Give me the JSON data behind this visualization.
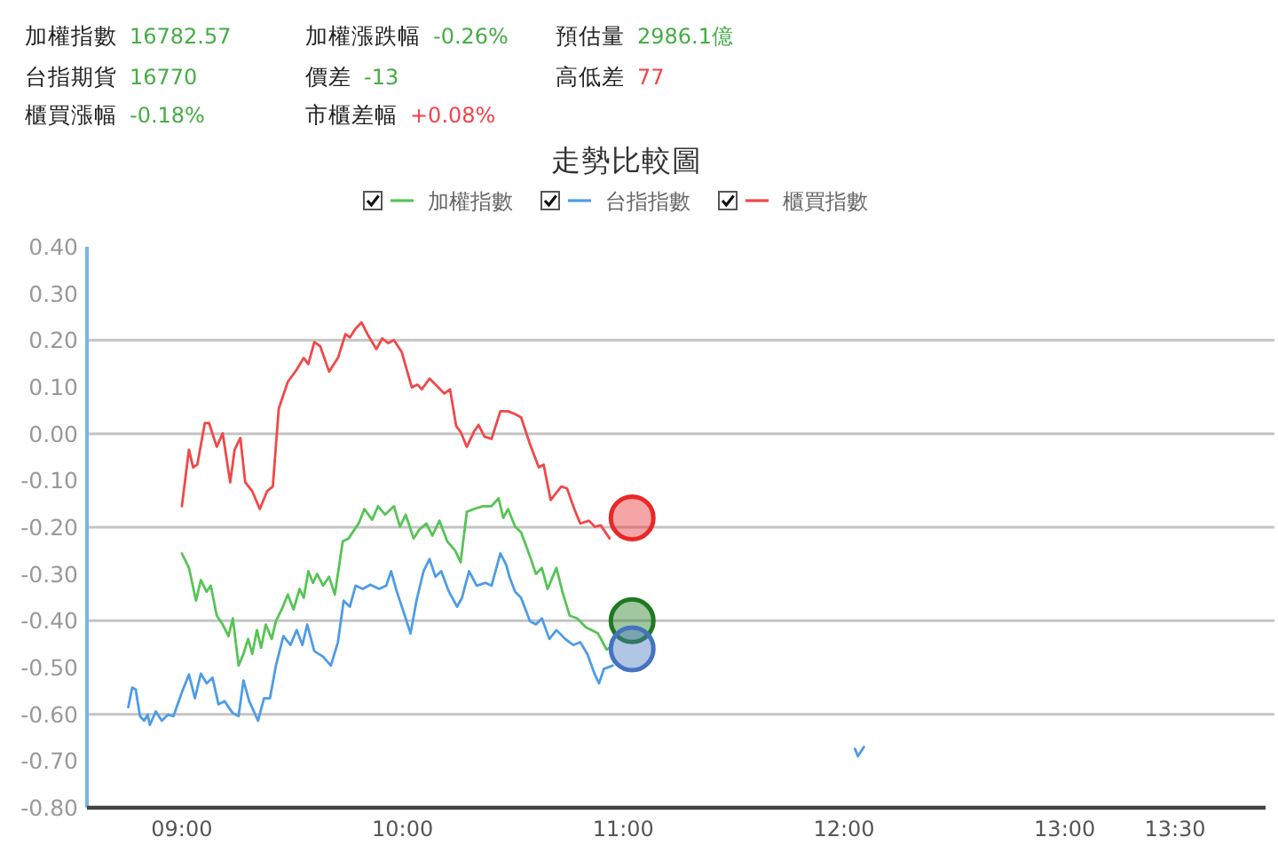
{
  "chart_data": {
    "type": "line",
    "title": "走勢比較圖",
    "annotations": [
      "加權指數 16782.57",
      "加權漲跌幅 -0.26%",
      "預估量 2986.1億",
      "台指期貨 16770",
      "價差 -13",
      "高低差 77",
      "櫃買漲幅 -0.18%",
      "市櫃差幅 +0.08%"
    ],
    "xlim": [
      8.57,
      13.91
    ],
    "xticks": [
      {
        "value": 9,
        "label": "09:00"
      },
      {
        "value": 10,
        "label": "10:00"
      },
      {
        "value": 11,
        "label": "11:00"
      },
      {
        "value": 12,
        "label": "12:00"
      },
      {
        "value": 13,
        "label": "13:00"
      },
      {
        "value": 13.5,
        "label": "13:30"
      }
    ],
    "ylim": [
      -0.8,
      0.4
    ],
    "yticks": [
      {
        "value": 0.4,
        "label": "0.40"
      },
      {
        "value": 0.3,
        "label": "0.30"
      },
      {
        "value": 0.2,
        "label": "0.20"
      },
      {
        "value": 0.1,
        "label": "0.10"
      },
      {
        "value": 0,
        "label": "0.00"
      },
      {
        "value": -0.1,
        "label": "-0.10"
      },
      {
        "value": -0.2,
        "label": "-0.20"
      },
      {
        "value": -0.3,
        "label": "-0.30"
      },
      {
        "value": -0.4,
        "label": "-0.40"
      },
      {
        "value": -0.5,
        "label": "-0.50"
      },
      {
        "value": -0.6,
        "label": "-0.60"
      },
      {
        "value": -0.7,
        "label": "-0.70"
      },
      {
        "value": -0.8,
        "label": "-0.80"
      }
    ],
    "grid": "y",
    "legend": "top",
    "series": [
      {
        "name": "加權指數",
        "color": "#56c456",
        "x": [
          9.0,
          9.032,
          9.064,
          9.086,
          9.112,
          9.131,
          9.158,
          9.185,
          9.211,
          9.231,
          9.257,
          9.279,
          9.3,
          9.319,
          9.34,
          9.359,
          9.38,
          9.407,
          9.426,
          9.452,
          9.48,
          9.506,
          9.533,
          9.552,
          9.573,
          9.594,
          9.613,
          9.64,
          9.667,
          9.693,
          9.729,
          9.755,
          9.782,
          9.801,
          9.827,
          9.862,
          9.889,
          9.921,
          9.961,
          9.988,
          10.014,
          10.05,
          10.076,
          10.108,
          10.135,
          10.167,
          10.202,
          10.237,
          10.263,
          10.291,
          10.323,
          10.363,
          10.403,
          10.435,
          10.456,
          10.478,
          10.51,
          10.537,
          10.577,
          10.604,
          10.631,
          10.657,
          10.697,
          10.724,
          10.757,
          10.791,
          10.831,
          10.885,
          10.925,
          10.952
        ],
        "values": [
          -0.256,
          -0.287,
          -0.357,
          -0.313,
          -0.338,
          -0.325,
          -0.389,
          -0.408,
          -0.433,
          -0.395,
          -0.496,
          -0.471,
          -0.439,
          -0.471,
          -0.42,
          -0.458,
          -0.408,
          -0.439,
          -0.401,
          -0.376,
          -0.344,
          -0.376,
          -0.332,
          -0.351,
          -0.294,
          -0.319,
          -0.3,
          -0.325,
          -0.306,
          -0.344,
          -0.23,
          -0.224,
          -0.205,
          -0.192,
          -0.161,
          -0.184,
          -0.155,
          -0.173,
          -0.155,
          -0.199,
          -0.173,
          -0.224,
          -0.205,
          -0.192,
          -0.218,
          -0.186,
          -0.23,
          -0.249,
          -0.275,
          -0.167,
          -0.161,
          -0.155,
          -0.155,
          -0.138,
          -0.18,
          -0.161,
          -0.199,
          -0.211,
          -0.262,
          -0.3,
          -0.287,
          -0.332,
          -0.287,
          -0.338,
          -0.389,
          -0.395,
          -0.414,
          -0.427,
          -0.462,
          -0.452
        ]
      },
      {
        "name": "台指指數",
        "color": "#4e9ce6",
        "x": [
          8.757,
          8.775,
          8.791,
          8.81,
          8.829,
          8.845,
          8.855,
          8.882,
          8.909,
          8.936,
          8.962,
          9.0,
          9.032,
          9.059,
          9.086,
          9.112,
          9.139,
          9.166,
          9.193,
          9.231,
          9.257,
          9.279,
          9.305,
          9.345,
          9.372,
          9.399,
          9.426,
          9.46,
          9.492,
          9.52,
          9.546,
          9.568,
          9.6,
          9.64,
          9.675,
          9.707,
          9.733,
          9.761,
          9.787,
          9.819,
          9.854,
          9.894,
          9.926,
          9.948,
          9.974,
          10.01,
          10.036,
          10.063,
          10.095,
          10.122,
          10.149,
          10.175,
          10.21,
          10.247,
          10.269,
          10.301,
          10.336,
          10.376,
          10.403,
          10.443,
          10.47,
          10.484,
          10.51,
          10.537,
          10.577,
          10.604,
          10.631,
          10.665,
          10.697,
          10.737,
          10.773,
          10.805,
          10.837,
          10.871,
          10.89,
          10.912,
          10.952,
          11.5,
          12.05,
          12.063,
          12.09
        ],
        "values": [
          -0.585,
          -0.543,
          -0.547,
          -0.604,
          -0.614,
          -0.601,
          -0.623,
          -0.594,
          -0.614,
          -0.601,
          -0.604,
          -0.553,
          -0.515,
          -0.566,
          -0.513,
          -0.534,
          -0.522,
          -0.579,
          -0.572,
          -0.598,
          -0.604,
          -0.528,
          -0.572,
          -0.614,
          -0.566,
          -0.566,
          -0.496,
          -0.433,
          -0.452,
          -0.42,
          -0.452,
          -0.408,
          -0.465,
          -0.477,
          -0.496,
          -0.446,
          -0.357,
          -0.37,
          -0.325,
          -0.332,
          -0.323,
          -0.332,
          -0.325,
          -0.294,
          -0.338,
          -0.389,
          -0.427,
          -0.357,
          -0.294,
          -0.268,
          -0.306,
          -0.294,
          -0.338,
          -0.37,
          -0.351,
          -0.294,
          -0.325,
          -0.319,
          -0.325,
          -0.256,
          -0.281,
          -0.306,
          -0.338,
          -0.351,
          -0.401,
          -0.408,
          -0.395,
          -0.439,
          -0.42,
          -0.439,
          -0.452,
          -0.446,
          -0.471,
          -0.515,
          -0.534,
          -0.503,
          -0.496,
          null,
          -0.674,
          -0.69,
          -0.67
        ]
      },
      {
        "name": "櫃買指數",
        "color": "#f04848",
        "x": [
          9.0,
          9.032,
          9.051,
          9.07,
          9.104,
          9.123,
          9.158,
          9.185,
          9.219,
          9.239,
          9.265,
          9.287,
          9.319,
          9.353,
          9.386,
          9.412,
          9.439,
          9.48,
          9.52,
          9.552,
          9.573,
          9.6,
          9.627,
          9.667,
          9.707,
          9.741,
          9.761,
          9.787,
          9.814,
          9.841,
          9.881,
          9.908,
          9.934,
          9.961,
          9.996,
          10.042,
          10.068,
          10.087,
          10.122,
          10.162,
          10.189,
          10.215,
          10.243,
          10.263,
          10.291,
          10.323,
          10.344,
          10.371,
          10.403,
          10.443,
          10.478,
          10.51,
          10.537,
          10.577,
          10.617,
          10.639,
          10.671,
          10.719,
          10.745,
          10.778,
          10.805,
          10.845,
          10.871,
          10.898,
          10.938
        ],
        "values": [
          -0.155,
          -0.034,
          -0.072,
          -0.066,
          0.023,
          0.023,
          -0.028,
          0.001,
          -0.104,
          -0.034,
          -0.009,
          -0.104,
          -0.123,
          -0.161,
          -0.123,
          -0.113,
          0.054,
          0.111,
          0.137,
          0.162,
          0.149,
          0.196,
          0.187,
          0.133,
          0.162,
          0.213,
          0.206,
          0.225,
          0.238,
          0.213,
          0.181,
          0.204,
          0.194,
          0.2,
          0.175,
          0.099,
          0.105,
          0.095,
          0.118,
          0.099,
          0.086,
          0.095,
          0.016,
          0.004,
          -0.028,
          0.004,
          0.019,
          -0.006,
          -0.011,
          0.048,
          0.048,
          0.042,
          0.035,
          -0.022,
          -0.072,
          -0.066,
          -0.142,
          -0.113,
          -0.117,
          -0.161,
          -0.192,
          -0.186,
          -0.199,
          -0.196,
          -0.224
        ]
      },
      {
        "type": "scatter",
        "color": "#e82828",
        "x": [
          11.04
        ],
        "values": [
          -0.18
        ]
      },
      {
        "type": "scatter",
        "color": "#1f7a1f",
        "x": [
          11.04
        ],
        "values": [
          -0.4
        ]
      },
      {
        "type": "scatter",
        "color": "#4474c0",
        "x": [
          11.04
        ],
        "values": [
          -0.46
        ]
      }
    ]
  }
}
